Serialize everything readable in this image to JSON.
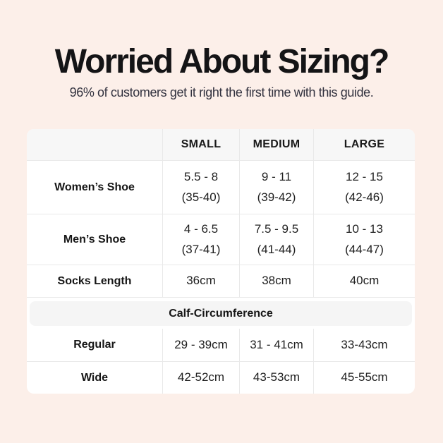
{
  "colors": {
    "background": "#fcefe9",
    "table_background": "#ffffff",
    "header_row_background": "#f7f7f7",
    "section_band_background": "#f5f5f5",
    "cell_border": "#e9e9e9",
    "title_text": "#141416",
    "subtitle_text": "#31313e"
  },
  "header": {
    "title": "Worried About Sizing?",
    "subtitle": "96% of customers get it right the first time with this guide."
  },
  "size_table": {
    "columns": {
      "small": "SMALL",
      "medium": "MEDIUM",
      "large": "LARGE"
    },
    "womens_shoe": {
      "label": "Women’s Shoe",
      "small_range": "5.5 - 8",
      "small_eu": "(35-40)",
      "medium_range": "9 - 11",
      "medium_eu": "(39-42)",
      "large_range": "12 - 15",
      "large_eu": "(42-46)"
    },
    "mens_shoe": {
      "label": "Men’s Shoe",
      "small_range": "4 - 6.5",
      "small_eu": "(37-41)",
      "medium_range": "7.5 - 9.5",
      "medium_eu": "(41-44)",
      "large_range": "10 - 13",
      "large_eu": "(44-47)"
    },
    "socks_length": {
      "label": "Socks Length",
      "small": "36cm",
      "medium": "38cm",
      "large": "40cm"
    },
    "calf_section_title": "Calf-Circumference",
    "regular": {
      "label": "Regular",
      "small": "29 - 39cm",
      "medium": "31 - 41cm",
      "large": "33-43cm"
    },
    "wide": {
      "label": "Wide",
      "small": "42-52cm",
      "medium": "43-53cm",
      "large": "45-55cm"
    }
  },
  "chart_data": {
    "type": "table",
    "title": "Worried About Sizing?",
    "subtitle": "96% of customers get it right the first time with this guide.",
    "columns": [
      "",
      "SMALL",
      "MEDIUM",
      "LARGE"
    ],
    "rows": [
      [
        "Women’s Shoe",
        "5.5 - 8 (35-40)",
        "9 - 11 (39-42)",
        "12 - 15 (42-46)"
      ],
      [
        "Men’s Shoe",
        "4 - 6.5 (37-41)",
        "7.5 - 9.5 (41-44)",
        "10 - 13 (44-47)"
      ],
      [
        "Socks Length",
        "36cm",
        "38cm",
        "40cm"
      ],
      [
        "Calf-Circumference (section header, spans all columns)",
        "",
        "",
        ""
      ],
      [
        "Regular",
        "29 - 39cm",
        "31 - 41cm",
        "33-43cm"
      ],
      [
        "Wide",
        "42-52cm",
        "43-53cm",
        "45-55cm"
      ]
    ],
    "layout": {
      "header_row_shaded": true,
      "section_band_shaded": true,
      "grid": true
    }
  }
}
